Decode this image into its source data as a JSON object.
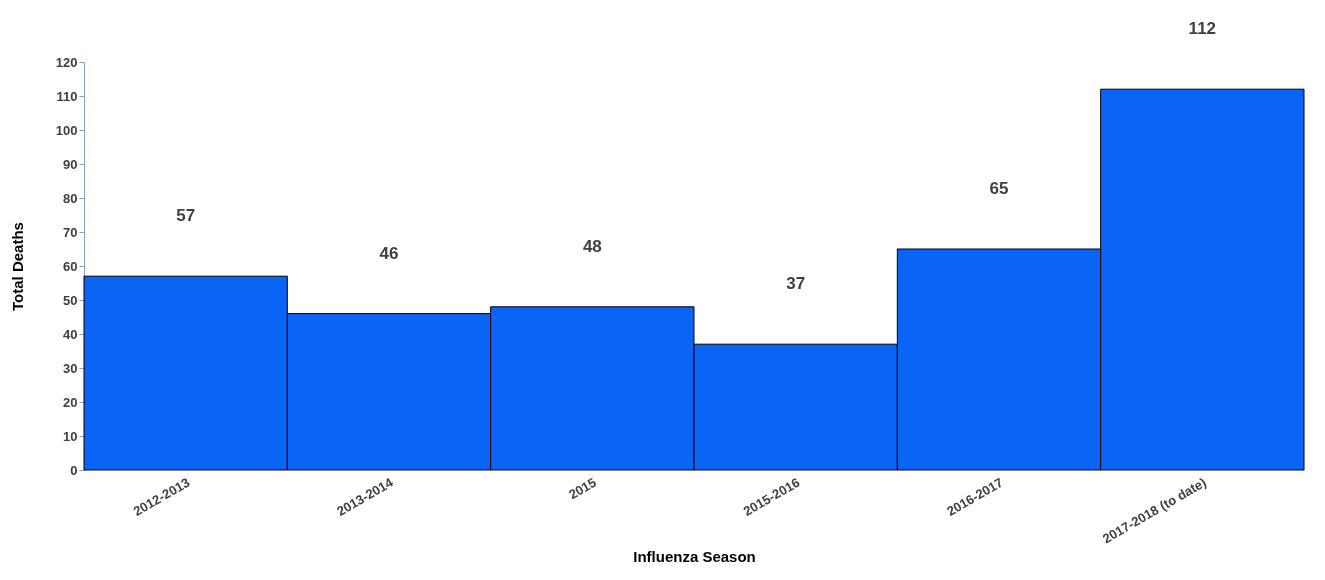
{
  "chart_data": {
    "type": "bar",
    "xlabel": "Influenza Season",
    "ylabel": "Total Deaths",
    "categories": [
      "2012-2013",
      "2013-2014",
      "2015",
      "2015-2016",
      "2016-2017",
      "2017-2018 (to date)"
    ],
    "values": [
      57,
      46,
      48,
      37,
      65,
      112
    ],
    "color": "#0a64f5",
    "ylim": [
      0,
      120
    ],
    "yticks": [
      0,
      10,
      20,
      30,
      40,
      50,
      60,
      70,
      80,
      90,
      100,
      110,
      120
    ],
    "data_labels": true,
    "grid": false
  }
}
